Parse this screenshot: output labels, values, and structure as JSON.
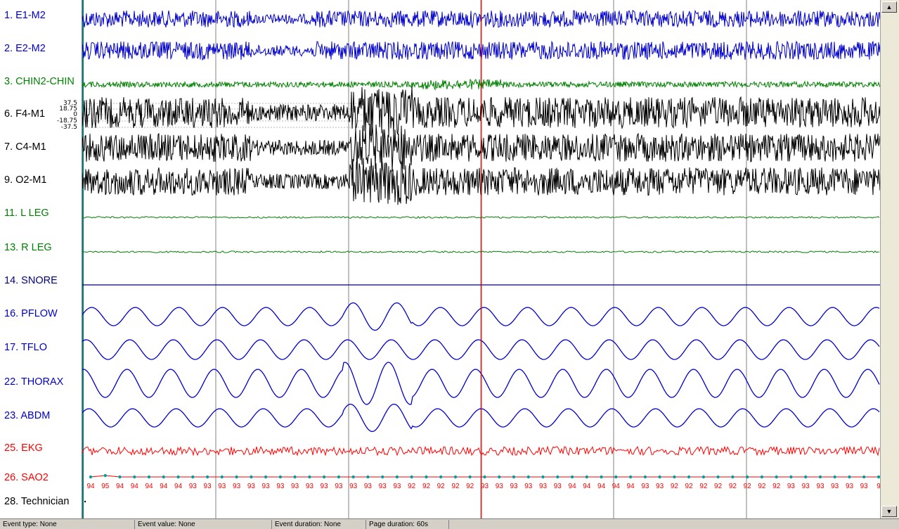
{
  "channels": [
    {
      "label": "1. E1-M2",
      "color": "#0000cc"
    },
    {
      "label": "2. E2-M2",
      "color": "#0000cc"
    },
    {
      "label": "3. CHIN2-CHIN",
      "color": "#008000"
    },
    {
      "label": "6. F4-M1",
      "color": "#000000"
    },
    {
      "label": "7. C4-M1",
      "color": "#000000"
    },
    {
      "label": "9. O2-M1",
      "color": "#000000"
    },
    {
      "label": "11. L LEG",
      "color": "#008000"
    },
    {
      "label": "13. R LEG",
      "color": "#008000"
    },
    {
      "label": "14. SNORE",
      "color": "#000080"
    },
    {
      "label": "16. PFLOW",
      "color": "#0000cc"
    },
    {
      "label": "17. TFLO",
      "color": "#0000cc"
    },
    {
      "label": "22. THORAX",
      "color": "#0000cc"
    },
    {
      "label": "23. ABDM",
      "color": "#0000cc"
    },
    {
      "label": "25. EKG",
      "color": "#ff0000"
    },
    {
      "label": "26. SAO2",
      "color": "#ff0000"
    },
    {
      "label": "28. Technician",
      "color": "#000000"
    }
  ],
  "eeg_scale_ticks": [
    "37.5",
    "18.75",
    "0",
    "-18.75",
    "-37.5"
  ],
  "sao2_values": [
    "94",
    "95",
    "94",
    "94",
    "94",
    "94",
    "94",
    "93",
    "93",
    "93",
    "93",
    "93",
    "93",
    "93",
    "93",
    "93",
    "93",
    "93",
    "93",
    "93",
    "93",
    "93",
    "92",
    "92",
    "92",
    "92",
    "92",
    "93",
    "93",
    "93",
    "93",
    "93",
    "93",
    "94",
    "94",
    "94",
    "94",
    "94",
    "93",
    "93",
    "92",
    "92",
    "92",
    "92",
    "92",
    "92",
    "92",
    "92",
    "93",
    "93",
    "93",
    "93",
    "93",
    "93",
    "9"
  ],
  "status": {
    "event_type": "Event type: None",
    "event_value": "Event value: None",
    "event_duration": "Event duration: None",
    "page_duration": "Page duration: 60s"
  },
  "scroll": {
    "up_icon": "▲",
    "down_icon": "▼"
  },
  "colors": {
    "cursor": "#ff0000",
    "epoch_line": "#808080",
    "sao2_dot": "#00a0a0",
    "start_marker": "#008080"
  }
}
